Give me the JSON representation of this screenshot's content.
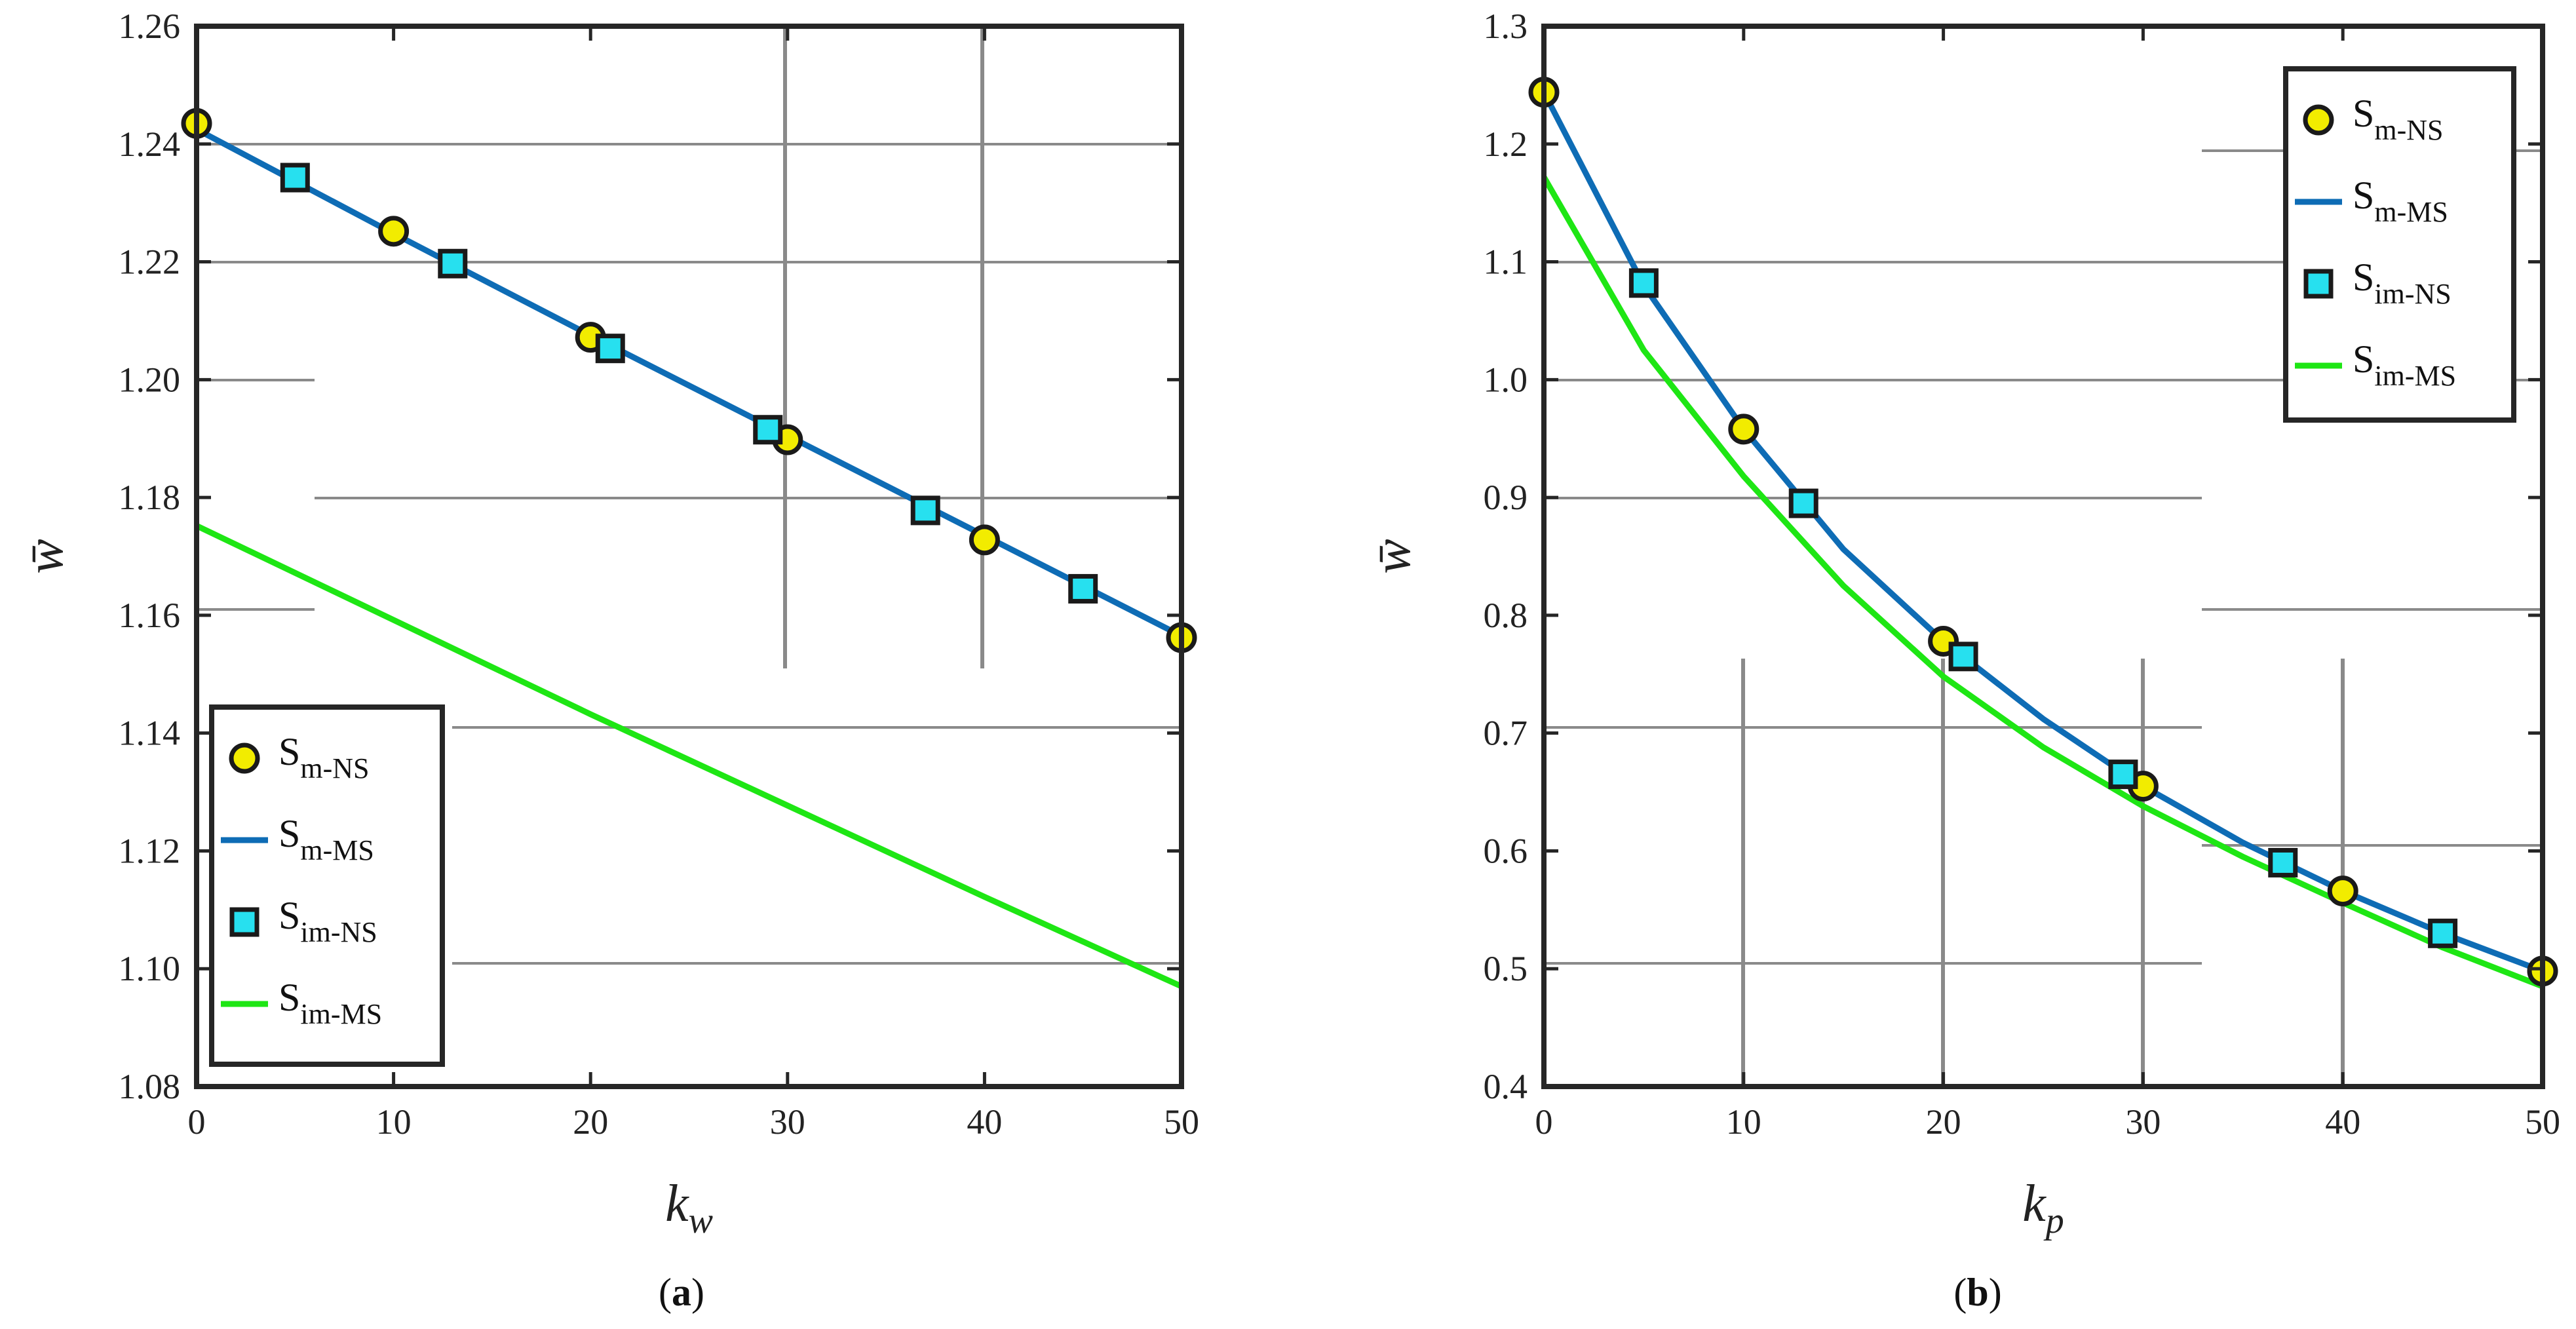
{
  "chart_data": [
    {
      "type": "line",
      "panel": "a",
      "caption_letter": "a",
      "xlabel_base": "k",
      "xlabel_sub": "w",
      "ylabel": "w̄",
      "xlim": [
        0,
        50
      ],
      "ylim": [
        1.08,
        1.26
      ],
      "xticks": [
        0,
        10,
        20,
        30,
        40,
        50
      ],
      "xtick_labels": [
        "0",
        "10",
        "20",
        "30",
        "40",
        "50"
      ],
      "yticks": [
        1.08,
        1.1,
        1.12,
        1.14,
        1.16,
        1.18,
        1.2,
        1.22,
        1.24,
        1.26
      ],
      "ytick_labels": [
        "1.08",
        "1.10",
        "1.12",
        "1.14",
        "1.16",
        "1.18",
        "1.20",
        "1.22",
        "1.24",
        "1.26"
      ],
      "legend_position": "bottom-left",
      "series": [
        {
          "name": "S_m-NS",
          "base": "S",
          "sub": "m-NS",
          "kind": "marker-circle",
          "color": "#f2ec00",
          "x": [
            0,
            10,
            20,
            30,
            40,
            50
          ],
          "y": [
            1.2435,
            1.2252,
            1.2072,
            1.1898,
            1.1728,
            1.1562
          ]
        },
        {
          "name": "S_m-MS",
          "base": "S",
          "sub": "m-MS",
          "kind": "line",
          "color": "#0e6cb5",
          "x": [
            0,
            10,
            20,
            30,
            40,
            50
          ],
          "y": [
            1.2425,
            1.2248,
            1.2075,
            1.1905,
            1.1735,
            1.1565
          ]
        },
        {
          "name": "S_im-NS",
          "base": "S",
          "sub": "im-NS",
          "kind": "marker-square",
          "color": "#27e0ef",
          "x": [
            5,
            13,
            21,
            29,
            37,
            45
          ],
          "y": [
            1.2343,
            1.2197,
            1.2053,
            1.1915,
            1.1778,
            1.1645
          ]
        },
        {
          "name": "S_im-MS",
          "base": "S",
          "sub": "im-MS",
          "kind": "line",
          "color": "#1ee614",
          "x": [
            0,
            10,
            20,
            30,
            40,
            50
          ],
          "y": [
            1.1752,
            1.1592,
            1.1432,
            1.1277,
            1.1122,
            1.097
          ]
        }
      ]
    },
    {
      "type": "line",
      "panel": "b",
      "caption_letter": "b",
      "xlabel_base": "k",
      "xlabel_sub": "p",
      "ylabel": "w̄",
      "xlim": [
        0,
        50
      ],
      "ylim": [
        0.4,
        1.3
      ],
      "xticks": [
        0,
        10,
        20,
        30,
        40,
        50
      ],
      "xtick_labels": [
        "0",
        "10",
        "20",
        "30",
        "40",
        "50"
      ],
      "yticks": [
        0.4,
        0.5,
        0.6,
        0.7,
        0.8,
        0.9,
        1.0,
        1.1,
        1.2,
        1.3
      ],
      "ytick_labels": [
        "0.4",
        "0.5",
        "0.6",
        "0.7",
        "0.8",
        "0.9",
        "1.0",
        "1.1",
        "1.2",
        "1.3"
      ],
      "legend_position": "top-right",
      "series": [
        {
          "name": "S_m-NS",
          "base": "S",
          "sub": "m-NS",
          "kind": "marker-circle",
          "color": "#f2ec00",
          "x": [
            0,
            10,
            20,
            30,
            40,
            50
          ],
          "y": [
            1.244,
            0.958,
            0.778,
            0.655,
            0.566,
            0.498
          ]
        },
        {
          "name": "S_m-MS",
          "base": "S",
          "sub": "m-MS",
          "kind": "line",
          "color": "#0e6cb5",
          "x": [
            0,
            5,
            10,
            15,
            20,
            25,
            30,
            35,
            40,
            45,
            50
          ],
          "y": [
            1.244,
            1.08,
            0.958,
            0.856,
            0.778,
            0.712,
            0.655,
            0.607,
            0.566,
            0.53,
            0.498
          ]
        },
        {
          "name": "S_im-NS",
          "base": "S",
          "sub": "im-NS",
          "kind": "marker-square",
          "color": "#27e0ef",
          "x": [
            5,
            13,
            21,
            29,
            37,
            45
          ],
          "y": [
            1.082,
            0.895,
            0.765,
            0.665,
            0.59,
            0.53
          ]
        },
        {
          "name": "S_im-MS",
          "base": "S",
          "sub": "im-MS",
          "kind": "line",
          "color": "#1ee614",
          "x": [
            0,
            5,
            10,
            15,
            20,
            25,
            30,
            35,
            40,
            45,
            50
          ],
          "y": [
            1.172,
            1.025,
            0.918,
            0.825,
            0.748,
            0.688,
            0.638,
            0.595,
            0.556,
            0.518,
            0.485
          ]
        }
      ]
    }
  ]
}
